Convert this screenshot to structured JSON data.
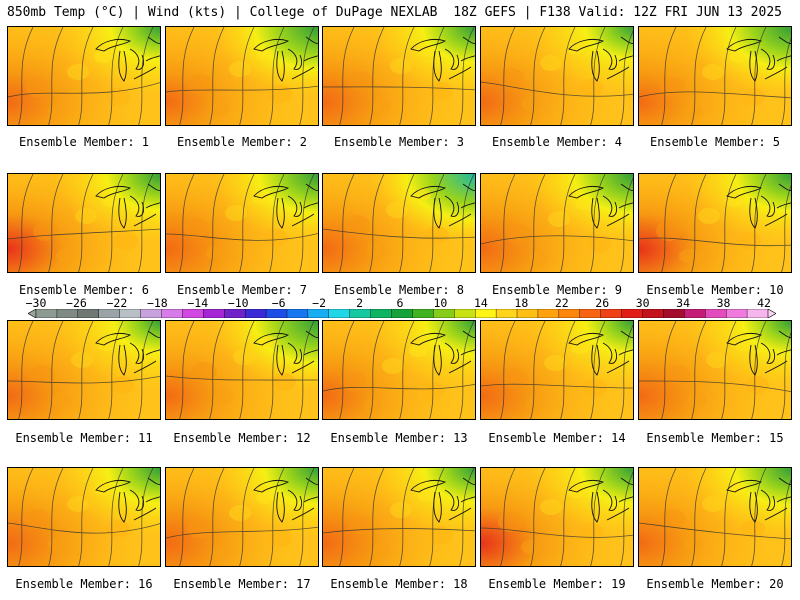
{
  "header": {
    "left": "850mb Temp (°C) | Wind (kts) | College of DuPage NEXLAB",
    "right": "18Z GEFS | F138 Valid: 12Z FRI JUN 13 2025"
  },
  "panels": [
    {
      "label": "Ensemble Member: 1",
      "warm": 0.45,
      "cool": 0.25
    },
    {
      "label": "Ensemble Member: 2",
      "warm": 0.35,
      "cool": 0.7
    },
    {
      "label": "Ensemble Member: 3",
      "warm": 0.6,
      "cool": 0.35
    },
    {
      "label": "Ensemble Member: 4",
      "warm": 0.5,
      "cool": 0.2
    },
    {
      "label": "Ensemble Member: 5",
      "warm": 0.35,
      "cool": 0.65
    },
    {
      "label": "Ensemble Member: 6",
      "warm": 0.75,
      "cool": 0.4
    },
    {
      "label": "Ensemble Member: 7",
      "warm": 0.7,
      "cool": 0.55
    },
    {
      "label": "Ensemble Member: 8",
      "warm": 0.55,
      "cool": 0.85
    },
    {
      "label": "Ensemble Member: 9",
      "warm": 0.6,
      "cool": 0.55
    },
    {
      "label": "Ensemble Member: 10",
      "warm": 0.75,
      "cool": 0.45
    },
    {
      "label": "Ensemble Member: 11",
      "warm": 0.45,
      "cool": 0.15
    },
    {
      "label": "Ensemble Member: 12",
      "warm": 0.4,
      "cool": 0.7
    },
    {
      "label": "Ensemble Member: 13",
      "warm": 0.45,
      "cool": 0.25
    },
    {
      "label": "Ensemble Member: 14",
      "warm": 0.55,
      "cool": 0.2
    },
    {
      "label": "Ensemble Member: 15",
      "warm": 0.6,
      "cool": 0.2
    },
    {
      "label": "Ensemble Member: 16",
      "warm": 0.6,
      "cool": 0.35
    },
    {
      "label": "Ensemble Member: 17",
      "warm": 0.65,
      "cool": 0.4
    },
    {
      "label": "Ensemble Member: 18",
      "warm": 0.65,
      "cool": 0.3
    },
    {
      "label": "Ensemble Member: 19",
      "warm": 0.75,
      "cool": 0.35
    },
    {
      "label": "Ensemble Member: 20",
      "warm": 0.45,
      "cool": 0.45
    }
  ],
  "colorbar": {
    "labels": [
      "-30",
      "-26",
      "-22",
      "-18",
      "-14",
      "-10",
      "-6",
      "-2",
      "2",
      "6",
      "10",
      "14",
      "18",
      "22",
      "26",
      "30",
      "34",
      "38",
      "42"
    ],
    "colors": [
      "#8c9a91",
      "#7f8a84",
      "#6f7872",
      "#9aa4a8",
      "#b8c0c6",
      "#c7a2dd",
      "#d67be8",
      "#d149e0",
      "#a526d4",
      "#6f22c8",
      "#3a2bd6",
      "#1d4ee6",
      "#1677f0",
      "#19aef3",
      "#20d7e8",
      "#17c9a1",
      "#0fb463",
      "#16a23a",
      "#3fb420",
      "#86cc18",
      "#c9e312",
      "#fff514",
      "#ffd41a",
      "#ffbf12",
      "#ffa20e",
      "#ff860c",
      "#f86412",
      "#ef4016",
      "#e11e18",
      "#c4121b",
      "#a30c2a",
      "#c51c76",
      "#e24cbc",
      "#f17ade",
      "#f7b5ee"
    ]
  }
}
